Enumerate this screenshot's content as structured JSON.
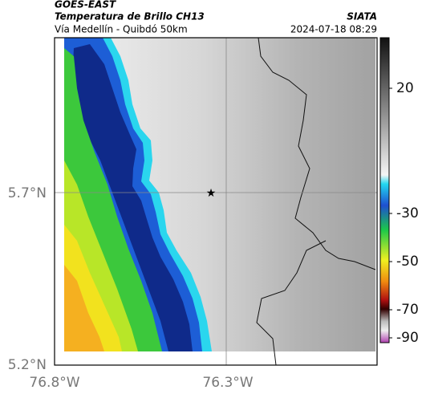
{
  "header": {
    "source": "GOES-EAST",
    "title": "Temperatura de Brillo CH13",
    "subtitle": "Vía Medellín - Quibdó 50km",
    "agency": "SIATA",
    "datetime": "2024-07-18 08:29"
  },
  "axes": {
    "lat_labels": [
      "5.7°N",
      "5.2°N"
    ],
    "lon_labels": [
      "76.8°W",
      "76.3°W"
    ]
  },
  "colorbar": {
    "ticks": [
      20,
      -30,
      -50,
      -70,
      -90
    ]
  }
}
